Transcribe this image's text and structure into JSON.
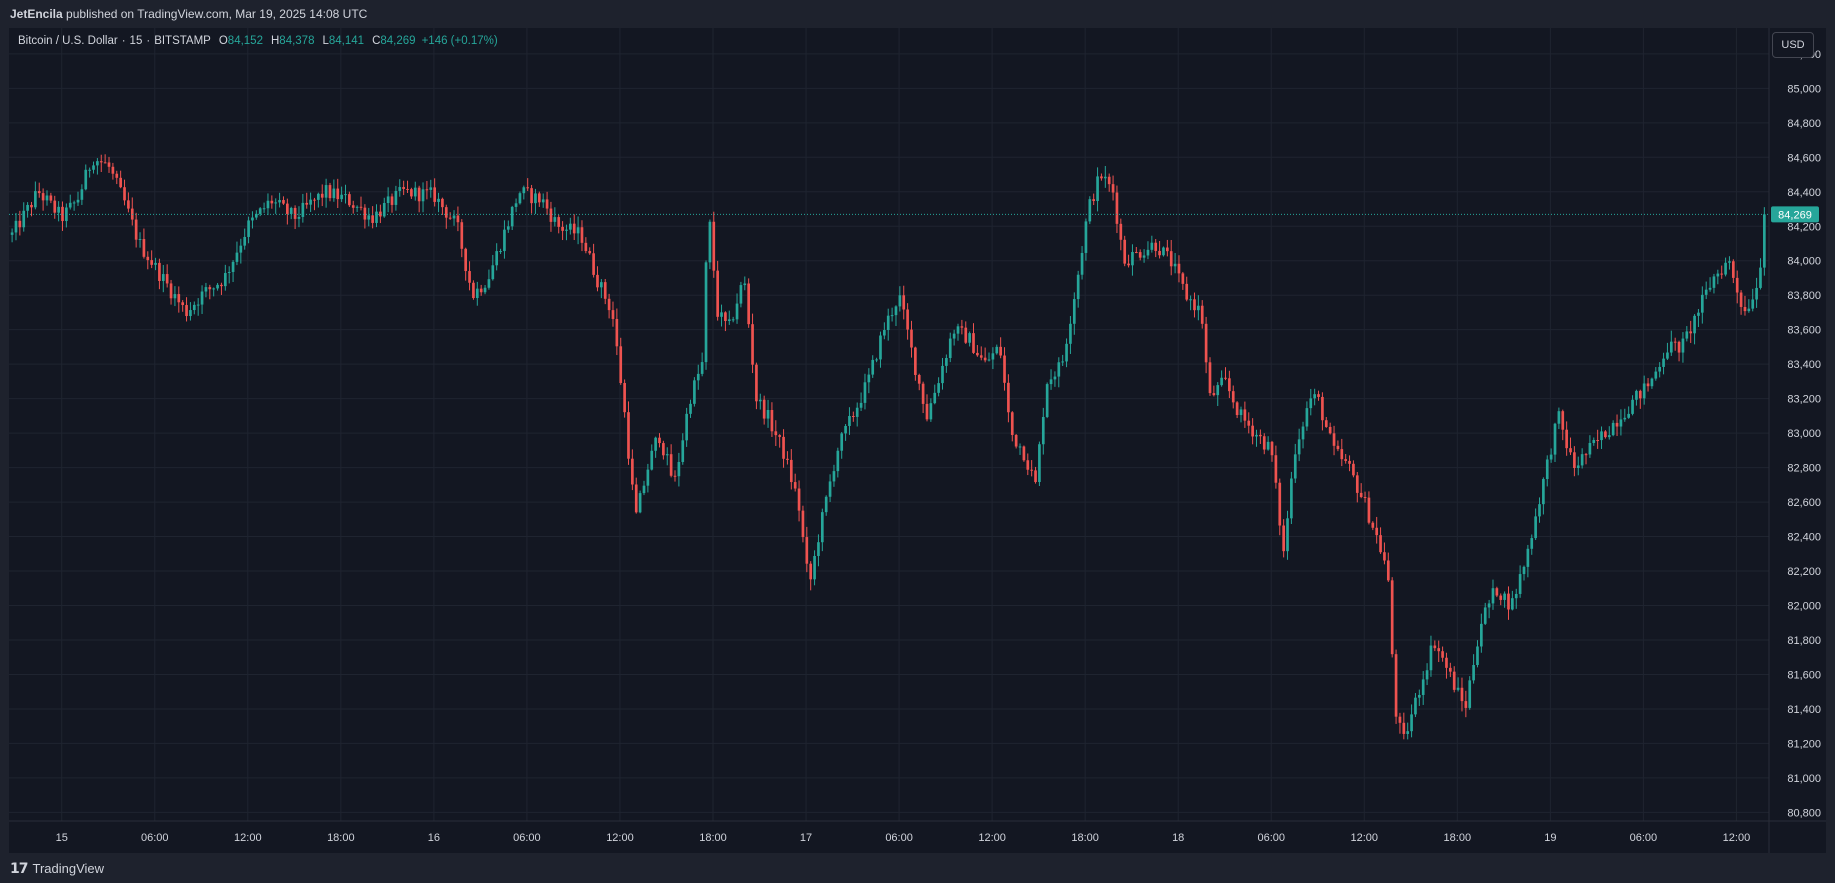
{
  "header": {
    "publisher": "JetEncila",
    "published_text": "published on TradingView.com, Mar 19, 2025 14:08 UTC"
  },
  "legend": {
    "symbol": "Bitcoin / U.S. Dollar",
    "interval": "15",
    "exchange": "BITSTAMP",
    "open_label": "O",
    "open": "84,152",
    "high_label": "H",
    "high": "84,378",
    "low_label": "L",
    "low": "84,141",
    "close_label": "C",
    "close": "84,269",
    "change": "+146 (+0.17%)"
  },
  "currency_button": "USD",
  "footer": {
    "logo_icon": "tradingview-logo-icon",
    "brand": "TradingView"
  },
  "colors": {
    "up": "#26a69a",
    "down": "#ef5350",
    "background": "#131722",
    "grid": "#1f2430",
    "price_line": "#26a69a"
  },
  "chart_data": {
    "type": "candlestick",
    "symbol": "BTCUSD",
    "interval": "15",
    "ylim": [
      80750,
      85350
    ],
    "y_ticks": [
      80800,
      81000,
      81200,
      81400,
      81600,
      81800,
      82000,
      82200,
      82400,
      82600,
      82800,
      83000,
      83200,
      83400,
      83600,
      83800,
      84000,
      84200,
      84400,
      84600,
      84800,
      85000,
      85200
    ],
    "y_tick_labels": [
      "80,800",
      "81,000",
      "81,200",
      "81,400",
      "81,600",
      "81,800",
      "82,000",
      "82,200",
      "82,400",
      "82,600",
      "82,800",
      "83,000",
      "83,200",
      "83,400",
      "83,600",
      "83,800",
      "84,000",
      "84,200",
      "84,400",
      "84,600",
      "84,800",
      "85,000",
      "85,200"
    ],
    "x_ticks": [
      {
        "hour": 0,
        "label": "15"
      },
      {
        "hour": 6,
        "label": "06:00"
      },
      {
        "hour": 12,
        "label": "12:00"
      },
      {
        "hour": 18,
        "label": "18:00"
      },
      {
        "hour": 24,
        "label": "16"
      },
      {
        "hour": 30,
        "label": "06:00"
      },
      {
        "hour": 36,
        "label": "12:00"
      },
      {
        "hour": 42,
        "label": "18:00"
      },
      {
        "hour": 48,
        "label": "17"
      },
      {
        "hour": 54,
        "label": "06:00"
      },
      {
        "hour": 60,
        "label": "12:00"
      },
      {
        "hour": 66,
        "label": "18:00"
      },
      {
        "hour": 72,
        "label": "18"
      },
      {
        "hour": 78,
        "label": "06:00"
      },
      {
        "hour": 84,
        "label": "12:00"
      },
      {
        "hour": 90,
        "label": "18:00"
      },
      {
        "hour": 96,
        "label": "19"
      },
      {
        "hour": 102,
        "label": "06:00"
      },
      {
        "hour": 108,
        "label": "12:00"
      }
    ],
    "x_range_hours": [
      -3.4,
      110.1
    ],
    "last_price": 84269,
    "last_price_label": "84,269",
    "keypoints": [
      [
        -3.2,
        84150
      ],
      [
        -1.5,
        84400
      ],
      [
        0,
        84250
      ],
      [
        1,
        84350
      ],
      [
        2,
        84600
      ],
      [
        3,
        84550
      ],
      [
        4,
        84350
      ],
      [
        5,
        84100
      ],
      [
        6.5,
        83900
      ],
      [
        8,
        83700
      ],
      [
        9,
        83800
      ],
      [
        10.5,
        83900
      ],
      [
        12,
        84200
      ],
      [
        13.5,
        84350
      ],
      [
        15,
        84250
      ],
      [
        17,
        84400
      ],
      [
        18.5,
        84350
      ],
      [
        20,
        84250
      ],
      [
        22,
        84400
      ],
      [
        24,
        84380
      ],
      [
        25.5,
        84200
      ],
      [
        26.5,
        83800
      ],
      [
        27.5,
        83900
      ],
      [
        28.5,
        84150
      ],
      [
        29.5,
        84400
      ],
      [
        31,
        84350
      ],
      [
        32,
        84200
      ],
      [
        33.5,
        84150
      ],
      [
        34.5,
        83900
      ],
      [
        35.5,
        83700
      ],
      [
        36.2,
        83200
      ],
      [
        37,
        82500
      ],
      [
        37.8,
        82800
      ],
      [
        38.5,
        83000
      ],
      [
        39.5,
        82700
      ],
      [
        40.5,
        83200
      ],
      [
        41.3,
        83400
      ],
      [
        41.7,
        84300
      ],
      [
        42.3,
        83700
      ],
      [
        43,
        83600
      ],
      [
        44,
        83900
      ],
      [
        44.8,
        83200
      ],
      [
        45.5,
        83100
      ],
      [
        46.5,
        82900
      ],
      [
        47.5,
        82600
      ],
      [
        48.2,
        82100
      ],
      [
        48.8,
        82400
      ],
      [
        50,
        82900
      ],
      [
        51,
        83100
      ],
      [
        52,
        83300
      ],
      [
        53,
        83600
      ],
      [
        54,
        83800
      ],
      [
        55,
        83400
      ],
      [
        55.8,
        83100
      ],
      [
        56.5,
        83300
      ],
      [
        57.5,
        83600
      ],
      [
        58.5,
        83550
      ],
      [
        59.5,
        83400
      ],
      [
        60.5,
        83500
      ],
      [
        61.2,
        83000
      ],
      [
        62,
        82900
      ],
      [
        62.8,
        82700
      ],
      [
        63.5,
        83300
      ],
      [
        64.5,
        83400
      ],
      [
        65.5,
        83900
      ],
      [
        66.2,
        84300
      ],
      [
        67,
        84500
      ],
      [
        67.8,
        84400
      ],
      [
        68.5,
        84000
      ],
      [
        69.5,
        84050
      ],
      [
        70.5,
        84100
      ],
      [
        71.5,
        84000
      ],
      [
        72.5,
        83800
      ],
      [
        73.5,
        83700
      ],
      [
        74,
        83200
      ],
      [
        75,
        83300
      ],
      [
        76,
        83100
      ],
      [
        77,
        83000
      ],
      [
        78,
        82900
      ],
      [
        78.8,
        82300
      ],
      [
        79.5,
        82900
      ],
      [
        80.5,
        83200
      ],
      [
        81,
        83200
      ],
      [
        82,
        82900
      ],
      [
        83,
        82800
      ],
      [
        84,
        82600
      ],
      [
        84.8,
        82400
      ],
      [
        85.5,
        82200
      ],
      [
        86,
        81400
      ],
      [
        86.5,
        81200
      ],
      [
        87.5,
        81500
      ],
      [
        88.5,
        81800
      ],
      [
        89.5,
        81600
      ],
      [
        90.5,
        81400
      ],
      [
        91.5,
        81900
      ],
      [
        92.5,
        82100
      ],
      [
        93.5,
        82000
      ],
      [
        94.5,
        82300
      ],
      [
        95.5,
        82700
      ],
      [
        96.5,
        83100
      ],
      [
        97.5,
        82800
      ],
      [
        98.5,
        82900
      ],
      [
        99.5,
        83000
      ],
      [
        100.5,
        83100
      ],
      [
        101.5,
        83200
      ],
      [
        102.5,
        83300
      ],
      [
        103.5,
        83500
      ],
      [
        104.5,
        83500
      ],
      [
        105.5,
        83700
      ],
      [
        106.5,
        83900
      ],
      [
        107.5,
        84000
      ],
      [
        108.5,
        83700
      ],
      [
        109.3,
        83850
      ],
      [
        110,
        84269
      ]
    ]
  }
}
